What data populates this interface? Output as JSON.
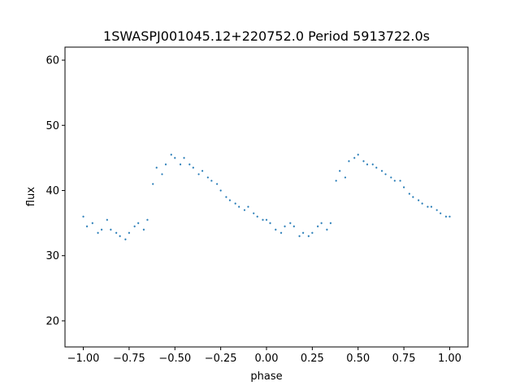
{
  "chart_data": {
    "type": "scatter",
    "title": "1SWASPJ001045.12+220752.0 Period 5913722.0s",
    "xlabel": "phase",
    "ylabel": "flux",
    "xlim": [
      -1.1,
      1.1
    ],
    "ylim": [
      16,
      62
    ],
    "xticks": [
      -1.0,
      -0.75,
      -0.5,
      -0.25,
      0.0,
      0.25,
      0.5,
      0.75,
      1.0
    ],
    "xtick_labels": [
      "−1.00",
      "−0.75",
      "−0.50",
      "−0.25",
      "0.00",
      "0.25",
      "0.50",
      "0.75",
      "1.00"
    ],
    "yticks": [
      20,
      30,
      40,
      50,
      60
    ],
    "ytick_labels": [
      "20",
      "30",
      "40",
      "50",
      "60"
    ],
    "grid": false,
    "marker_color": "#1f77b4",
    "series": [
      {
        "x": [
          -1.0,
          -0.98,
          -0.95,
          -0.92,
          -0.9,
          -0.87,
          -0.85,
          -0.82,
          -0.8,
          -0.77,
          -0.75,
          -0.72,
          -0.7,
          -0.67,
          -0.65,
          -0.62,
          -0.6,
          -0.57,
          -0.55,
          -0.52,
          -0.5,
          -0.47,
          -0.45,
          -0.42,
          -0.4,
          -0.37,
          -0.35,
          -0.32,
          -0.3,
          -0.27,
          -0.25,
          -0.22,
          -0.2,
          -0.17,
          -0.15,
          -0.12,
          -0.1,
          -0.07,
          -0.05,
          -0.02,
          0.0,
          0.02,
          0.05,
          0.08,
          0.1,
          0.13,
          0.15,
          0.18,
          0.2,
          0.23,
          0.25,
          0.28,
          0.3,
          0.33,
          0.35,
          0.38,
          0.4,
          0.43,
          0.45,
          0.48,
          0.5,
          0.53,
          0.55,
          0.58,
          0.6,
          0.63,
          0.65,
          0.68,
          0.7,
          0.73,
          0.75,
          0.78,
          0.8,
          0.83,
          0.85,
          0.88,
          0.9,
          0.93,
          0.95,
          0.98,
          1.0
        ],
        "y": [
          36.0,
          34.5,
          35.0,
          33.5,
          34.0,
          35.5,
          34.0,
          33.5,
          33.0,
          32.5,
          33.5,
          34.5,
          35.0,
          34.0,
          35.5,
          41.0,
          43.5,
          42.5,
          44.0,
          45.5,
          45.0,
          44.0,
          45.0,
          44.0,
          43.5,
          42.5,
          43.0,
          42.0,
          41.5,
          41.0,
          40.0,
          39.0,
          38.5,
          38.0,
          37.5,
          37.0,
          37.5,
          36.5,
          36.0,
          35.5,
          35.5,
          35.0,
          34.0,
          33.5,
          34.5,
          35.0,
          34.5,
          33.0,
          33.5,
          33.0,
          33.5,
          34.5,
          35.0,
          34.0,
          35.0,
          41.5,
          43.0,
          42.0,
          44.5,
          45.0,
          45.5,
          44.5,
          44.0,
          44.0,
          43.5,
          43.0,
          42.5,
          42.0,
          41.5,
          41.5,
          40.5,
          39.5,
          39.0,
          38.5,
          38.0,
          37.5,
          37.5,
          37.0,
          36.5,
          36.0,
          36.0
        ]
      }
    ]
  }
}
